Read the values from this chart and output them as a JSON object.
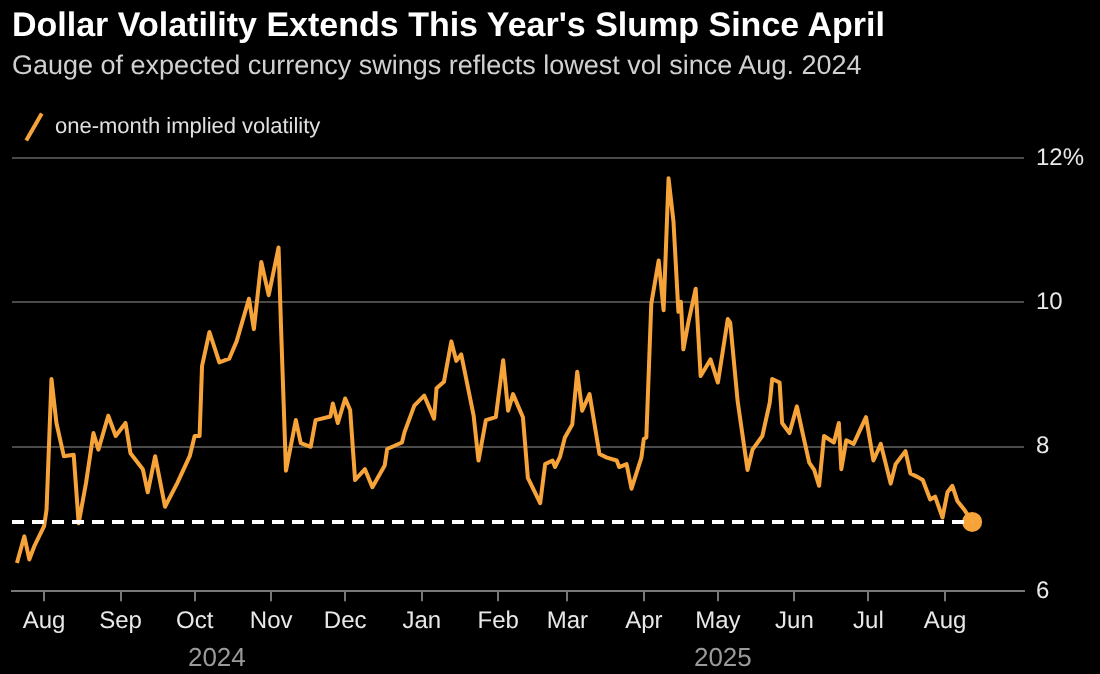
{
  "chart_data": {
    "type": "line",
    "title": "Dollar Volatility Extends This Year's Slump Since April",
    "subtitle": "Gauge of expected currency swings reflects lowest vol since Aug. 2024",
    "x": [
      "2024-07-21",
      "2024-07-24",
      "2024-07-26",
      "2024-07-28",
      "2024-08-01",
      "2024-08-02",
      "2024-08-04",
      "2024-08-06",
      "2024-08-09",
      "2024-08-13",
      "2024-08-15",
      "2024-08-18",
      "2024-08-21",
      "2024-08-23",
      "2024-08-27",
      "2024-08-30",
      "2024-09-03",
      "2024-09-05",
      "2024-09-10",
      "2024-09-12",
      "2024-09-15",
      "2024-09-19",
      "2024-09-24",
      "2024-09-29",
      "2024-10-01",
      "2024-10-03",
      "2024-10-04",
      "2024-10-07",
      "2024-10-11",
      "2024-10-15",
      "2024-10-18",
      "2024-10-23",
      "2024-10-25",
      "2024-10-28",
      "2024-10-31",
      "2024-11-04",
      "2024-11-05",
      "2024-11-07",
      "2024-11-11",
      "2024-11-13",
      "2024-11-17",
      "2024-11-19",
      "2024-11-25",
      "2024-11-26",
      "2024-11-28",
      "2024-12-01",
      "2024-12-03",
      "2024-12-05",
      "2024-12-09",
      "2024-12-12",
      "2024-12-17",
      "2024-12-18",
      "2024-12-24",
      "2024-12-25",
      "2024-12-29",
      "2025-01-02",
      "2025-01-06",
      "2025-01-07",
      "2025-01-10",
      "2025-01-13",
      "2025-01-15",
      "2025-01-17",
      "2025-01-22",
      "2025-01-24",
      "2025-01-27",
      "2025-01-31",
      "2025-02-03",
      "2025-02-05",
      "2025-02-07",
      "2025-02-11",
      "2025-02-13",
      "2025-02-18",
      "2025-02-20",
      "2025-02-23",
      "2025-02-24",
      "2025-02-26",
      "2025-02-28",
      "2025-03-03",
      "2025-03-05",
      "2025-03-07",
      "2025-03-10",
      "2025-03-14",
      "2025-03-17",
      "2025-03-21",
      "2025-03-22",
      "2025-03-25",
      "2025-03-27",
      "2025-03-31",
      "2025-04-01",
      "2025-04-02",
      "2025-04-04",
      "2025-04-07",
      "2025-04-09",
      "2025-04-11",
      "2025-04-13",
      "2025-04-15",
      "2025-04-16",
      "2025-04-17",
      "2025-04-19",
      "2025-04-22",
      "2025-04-24",
      "2025-04-28",
      "2025-05-01",
      "2025-05-05",
      "2025-05-06",
      "2025-05-09",
      "2025-05-13",
      "2025-05-15",
      "2025-05-19",
      "2025-05-22",
      "2025-05-23",
      "2025-05-26",
      "2025-05-27",
      "2025-05-30",
      "2025-06-02",
      "2025-06-04",
      "2025-06-07",
      "2025-06-09",
      "2025-06-11",
      "2025-06-13",
      "2025-06-17",
      "2025-06-19",
      "2025-06-20",
      "2025-06-22",
      "2025-06-25",
      "2025-06-27",
      "2025-06-30",
      "2025-07-03",
      "2025-07-06",
      "2025-07-10",
      "2025-07-12",
      "2025-07-16",
      "2025-07-18",
      "2025-07-21",
      "2025-07-23",
      "2025-07-26",
      "2025-07-28",
      "2025-07-31",
      "2025-08-02",
      "2025-08-04",
      "2025-08-06",
      "2025-08-09",
      "2025-08-12"
    ],
    "series": [
      {
        "name": "one-month implied volatility",
        "color": "#f6a33a",
        "values": [
          6.39,
          6.76,
          6.44,
          6.62,
          6.9,
          7.13,
          8.94,
          8.33,
          7.87,
          7.89,
          6.94,
          7.5,
          8.19,
          7.96,
          8.43,
          8.15,
          8.33,
          7.91,
          7.69,
          7.37,
          7.87,
          7.17,
          7.5,
          7.87,
          8.15,
          8.15,
          9.12,
          9.59,
          9.17,
          9.22,
          9.46,
          10.05,
          9.63,
          10.56,
          10.1,
          10.76,
          9.65,
          7.67,
          8.37,
          8.05,
          8.0,
          8.37,
          8.42,
          8.6,
          8.33,
          8.67,
          8.51,
          7.54,
          7.69,
          7.44,
          7.74,
          7.97,
          8.06,
          8.2,
          8.57,
          8.71,
          8.39,
          8.81,
          8.9,
          9.46,
          9.19,
          9.28,
          8.44,
          7.81,
          8.37,
          8.41,
          9.2,
          8.5,
          8.73,
          8.41,
          7.57,
          7.22,
          7.76,
          7.81,
          7.72,
          7.86,
          8.13,
          8.31,
          9.04,
          8.5,
          8.73,
          7.9,
          7.85,
          7.81,
          7.72,
          7.76,
          7.42,
          7.85,
          8.11,
          8.13,
          9.98,
          10.58,
          9.89,
          11.72,
          11.12,
          9.87,
          10.01,
          9.35,
          9.72,
          10.19,
          8.98,
          9.21,
          8.89,
          9.77,
          9.72,
          8.63,
          7.68,
          7.96,
          8.15,
          8.61,
          8.94,
          8.89,
          8.33,
          8.19,
          8.56,
          8.24,
          7.78,
          7.68,
          7.46,
          8.15,
          8.06,
          8.33,
          7.69,
          8.09,
          8.04,
          8.19,
          8.41,
          7.81,
          8.04,
          7.49,
          7.76,
          7.94,
          7.63,
          7.58,
          7.54,
          7.27,
          7.31,
          7.02,
          7.37,
          7.46,
          7.25,
          7.12,
          6.96
        ]
      }
    ],
    "xlim": [
      "2024-07-19",
      "2025-09-02"
    ],
    "xticks": [
      {
        "value": "2024-08-01",
        "label": "Aug"
      },
      {
        "value": "2024-09-01",
        "label": "Sep"
      },
      {
        "value": "2024-10-01",
        "label": "Oct"
      },
      {
        "value": "2024-11-01",
        "label": "Nov"
      },
      {
        "value": "2024-12-01",
        "label": "Dec"
      },
      {
        "value": "2025-01-01",
        "label": "Jan"
      },
      {
        "value": "2025-02-01",
        "label": "Feb"
      },
      {
        "value": "2025-03-01",
        "label": "Mar"
      },
      {
        "value": "2025-04-01",
        "label": "Apr"
      },
      {
        "value": "2025-05-01",
        "label": "May"
      },
      {
        "value": "2025-06-01",
        "label": "Jun"
      },
      {
        "value": "2025-07-01",
        "label": "Jul"
      },
      {
        "value": "2025-08-01",
        "label": "Aug"
      }
    ],
    "ylim": [
      6,
      12
    ],
    "yticks": [
      6,
      8,
      10,
      {
        "value": 12,
        "label": "12%"
      }
    ],
    "ref_lines": [
      {
        "axis": "y",
        "value": 6.96,
        "color": "#ffffff",
        "line_style": "dashed"
      }
    ],
    "annotations": [
      "2024",
      "2025"
    ],
    "grid": "y",
    "legend": "top left",
    "line_style": "solid"
  }
}
